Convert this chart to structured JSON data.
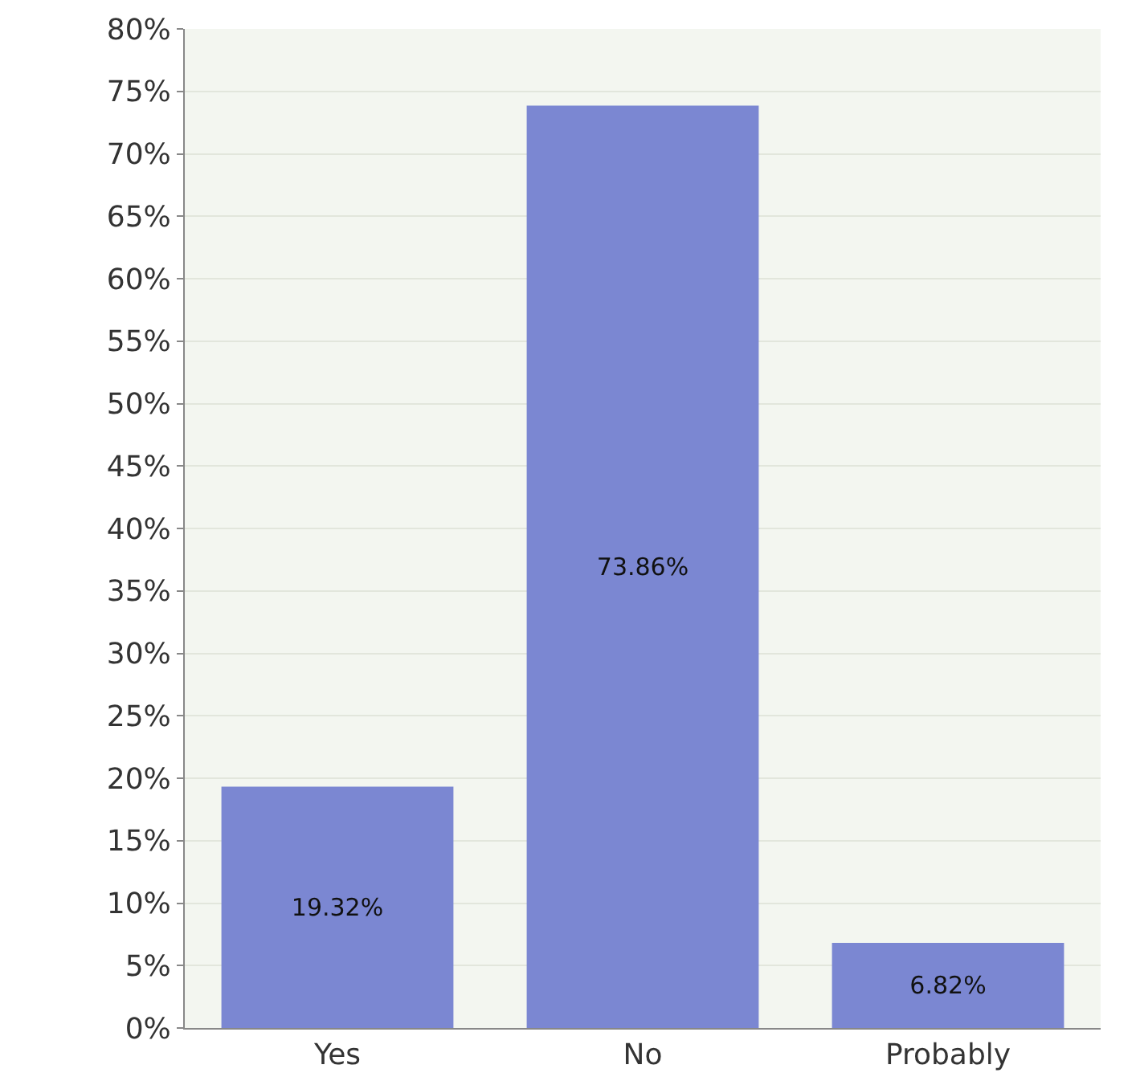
{
  "chart_data": {
    "type": "bar",
    "categories": [
      "Yes",
      "No",
      "Probably"
    ],
    "values": [
      19.32,
      73.86,
      6.82
    ],
    "value_labels": [
      "19.32%",
      "73.86%",
      "6.82%"
    ],
    "color": "#7b87d2",
    "ylim": [
      0,
      80
    ],
    "yticks": [
      {
        "value": 0,
        "label": "0%"
      },
      {
        "value": 5,
        "label": "5%"
      },
      {
        "value": 10,
        "label": "10%"
      },
      {
        "value": 15,
        "label": "15%"
      },
      {
        "value": 20,
        "label": "20%"
      },
      {
        "value": 25,
        "label": "25%"
      },
      {
        "value": 30,
        "label": "30%"
      },
      {
        "value": 35,
        "label": "35%"
      },
      {
        "value": 40,
        "label": "40%"
      },
      {
        "value": 45,
        "label": "45%"
      },
      {
        "value": 50,
        "label": "50%"
      },
      {
        "value": 55,
        "label": "55%"
      },
      {
        "value": 60,
        "label": "60%"
      },
      {
        "value": 65,
        "label": "65%"
      },
      {
        "value": 70,
        "label": "70%"
      },
      {
        "value": 75,
        "label": "75%"
      },
      {
        "value": 80,
        "label": "80%"
      }
    ],
    "grid": "y",
    "legend": false
  }
}
